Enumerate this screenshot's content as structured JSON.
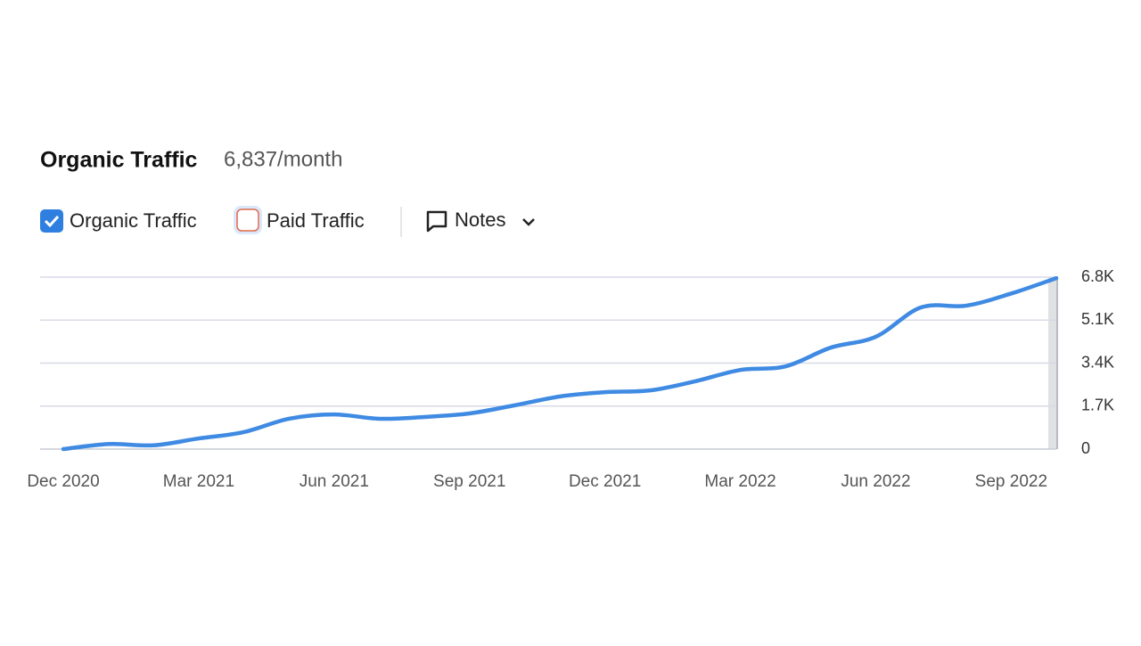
{
  "chart_data": {
    "type": "line",
    "title": "Organic Traffic",
    "subtitle": "6,837/month",
    "controls": {
      "organic": "Organic Traffic",
      "paid": "Paid Traffic",
      "notes": "Notes"
    },
    "categories": [
      "Dec 2020",
      null,
      null,
      "Mar 2021",
      null,
      null,
      "Jun 2021",
      null,
      null,
      "Sep 2021",
      null,
      null,
      "Dec 2021",
      null,
      null,
      "Mar 2022",
      null,
      null,
      "Jun 2022",
      null,
      null,
      "Sep 2022",
      null
    ],
    "series": [
      {
        "name": "Organic Traffic",
        "color": "#3f8ae2",
        "values": [
          0,
          200,
          150,
          420,
          670,
          1200,
          1370,
          1200,
          1270,
          1410,
          1730,
          2080,
          2250,
          2320,
          2680,
          3130,
          3270,
          4010,
          4440,
          5600,
          5670,
          6150,
          6760
        ]
      }
    ],
    "ylim": [
      0,
      6800
    ],
    "yticks": [
      0,
      {
        "value": 1700,
        "label": "1.7K"
      },
      {
        "value": 3400,
        "label": "3.4K"
      },
      {
        "value": 5100,
        "label": "5.1K"
      },
      {
        "value": 6800,
        "label": "6.8K"
      }
    ],
    "grid": true
  }
}
